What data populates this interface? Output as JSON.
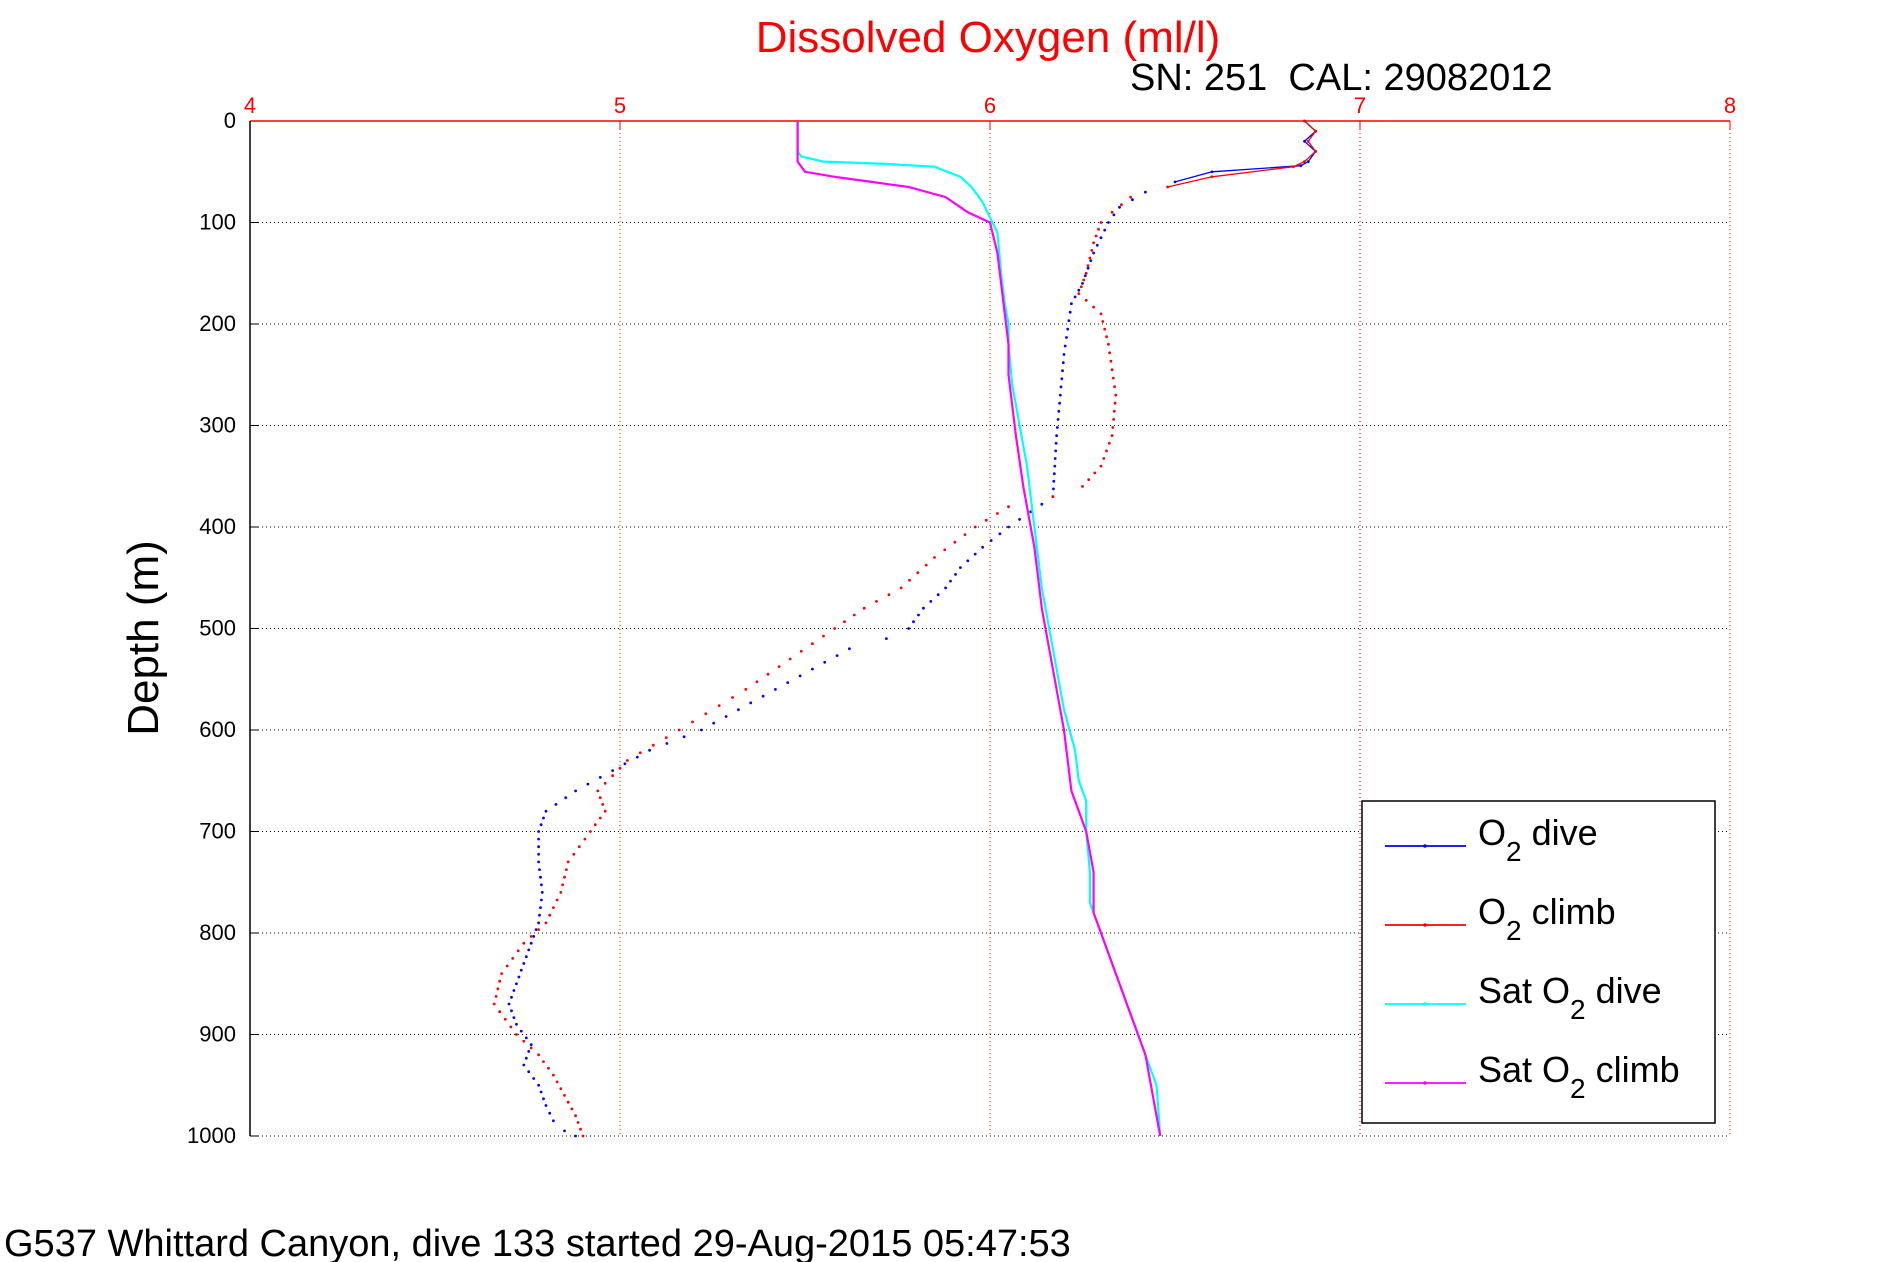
{
  "figure": {
    "title": "Dissolved Oxygen (ml/l)",
    "sensor_info": "SN: 251  CAL: 29082012",
    "footer": "G537 Whittard Canyon, dive 133 started 29-Aug-2015 05:47:53"
  },
  "colors": {
    "title": "#ff0000",
    "top_axis": "#ff0000",
    "grid_x": "#ff0000",
    "grid_y": "#000000",
    "o2_dive": "#0000ff",
    "o2_climb": "#ff0000",
    "sat_o2_dive": "#00ffff",
    "sat_o2_climb": "#ff00ff",
    "text": "#000000"
  },
  "legend": {
    "placement": "bottom-right",
    "items": [
      {
        "base": "O",
        "sub": "2",
        "rest": " dive",
        "color": "#0000ff"
      },
      {
        "base": "O",
        "sub": "2",
        "rest": " climb",
        "color": "#ff0000"
      },
      {
        "base": "Sat O",
        "sub": "2",
        "rest": " dive",
        "color": "#00ffff"
      },
      {
        "base": "Sat O",
        "sub": "2",
        "rest": " climb",
        "color": "#ff00ff"
      }
    ]
  },
  "chart_data": {
    "type": "line",
    "title": "Dissolved Oxygen (ml/l)",
    "xlabel": "",
    "ylabel": "Depth (m)",
    "xlim": [
      4,
      8
    ],
    "ylim": [
      0,
      1000
    ],
    "y_reversed": true,
    "x_axis_position": "top",
    "xticks": [
      4,
      5,
      6,
      7,
      8
    ],
    "yticks": [
      0,
      100,
      200,
      300,
      400,
      500,
      600,
      700,
      800,
      900,
      1000
    ],
    "grid": true,
    "legend_placement": "bottom-right",
    "series": [
      {
        "name": "O2 dive",
        "style": "dots-line",
        "x": [
          6.85,
          6.88,
          6.85,
          6.88,
          6.86,
          6.84,
          6.6,
          6.5,
          6.42,
          6.35,
          6.32,
          6.28,
          6.25,
          6.22,
          6.2,
          6.18,
          6.17,
          6.05,
          5.98,
          5.92,
          5.88,
          5.82,
          5.78,
          5.72,
          5.62,
          5.52,
          5.42,
          5.32,
          5.22,
          5.08,
          4.98,
          4.88,
          4.8,
          4.78,
          4.78,
          4.79,
          4.78,
          4.76,
          4.74,
          4.72,
          4.7,
          4.72,
          4.76,
          4.74,
          4.78,
          4.8,
          4.82,
          4.85,
          4.88
        ],
        "y": [
          0,
          10,
          20,
          30,
          40,
          44,
          50,
          60,
          70,
          85,
          100,
          130,
          160,
          180,
          230,
          310,
          370,
          400,
          420,
          440,
          460,
          480,
          500,
          510,
          520,
          540,
          560,
          580,
          600,
          620,
          640,
          660,
          680,
          700,
          730,
          760,
          790,
          810,
          830,
          850,
          870,
          890,
          910,
          930,
          950,
          970,
          985,
          995,
          1000
        ]
      },
      {
        "name": "O2 climb",
        "style": "dots-line",
        "x": [
          6.85,
          6.88,
          6.86,
          6.88,
          6.85,
          6.82,
          6.6,
          6.48,
          6.38,
          6.33,
          6.3,
          6.28,
          6.26,
          6.24,
          6.3,
          6.32,
          6.34,
          6.33,
          6.3,
          6.25,
          6.17,
          6.05,
          5.96,
          5.85,
          5.76,
          5.66,
          5.58,
          5.46,
          5.34,
          5.16,
          5.02,
          4.94,
          4.96,
          4.92,
          4.86,
          4.84,
          4.8,
          4.74,
          4.68,
          4.66,
          4.72,
          4.78,
          4.82,
          4.85,
          4.88,
          4.9
        ],
        "y": [
          0,
          10,
          20,
          30,
          40,
          45,
          55,
          65,
          75,
          90,
          100,
          120,
          150,
          170,
          190,
          220,
          270,
          310,
          340,
          360,
          370,
          380,
          400,
          430,
          460,
          480,
          500,
          530,
          560,
          600,
          630,
          660,
          680,
          700,
          730,
          760,
          790,
          810,
          840,
          870,
          900,
          920,
          940,
          960,
          980,
          1000
        ]
      },
      {
        "name": "Sat O2 dive",
        "style": "line",
        "x": [
          5.48,
          5.48,
          5.49,
          5.55,
          5.7,
          5.85,
          5.92,
          5.95,
          5.98,
          6.0,
          6.02,
          6.03,
          6.04,
          6.05,
          6.05,
          6.06,
          6.08,
          6.1,
          6.12,
          6.14,
          6.16,
          6.18,
          6.2,
          6.23,
          6.24,
          6.26,
          6.26,
          6.27,
          6.27,
          6.3,
          6.34,
          6.38,
          6.45,
          6.46
        ],
        "y": [
          0,
          30,
          35,
          40,
          42,
          45,
          55,
          65,
          80,
          95,
          110,
          150,
          180,
          200,
          220,
          260,
          300,
          340,
          400,
          460,
          500,
          540,
          580,
          620,
          650,
          670,
          700,
          740,
          770,
          800,
          840,
          880,
          950,
          1000
        ]
      },
      {
        "name": "Sat O2 climb",
        "style": "line",
        "x": [
          5.48,
          5.48,
          5.5,
          5.58,
          5.68,
          5.78,
          5.88,
          5.94,
          6.0,
          6.02,
          6.03,
          6.04,
          6.05,
          6.05,
          6.06,
          6.07,
          6.09,
          6.12,
          6.14,
          6.16,
          6.18,
          6.2,
          6.22,
          6.26,
          6.28,
          6.28,
          6.3,
          6.34,
          6.38,
          6.42,
          6.46
        ],
        "y": [
          0,
          40,
          50,
          55,
          60,
          65,
          75,
          90,
          100,
          130,
          160,
          190,
          220,
          250,
          280,
          310,
          360,
          420,
          480,
          520,
          560,
          600,
          660,
          700,
          740,
          780,
          800,
          840,
          880,
          920,
          1000
        ]
      }
    ]
  }
}
